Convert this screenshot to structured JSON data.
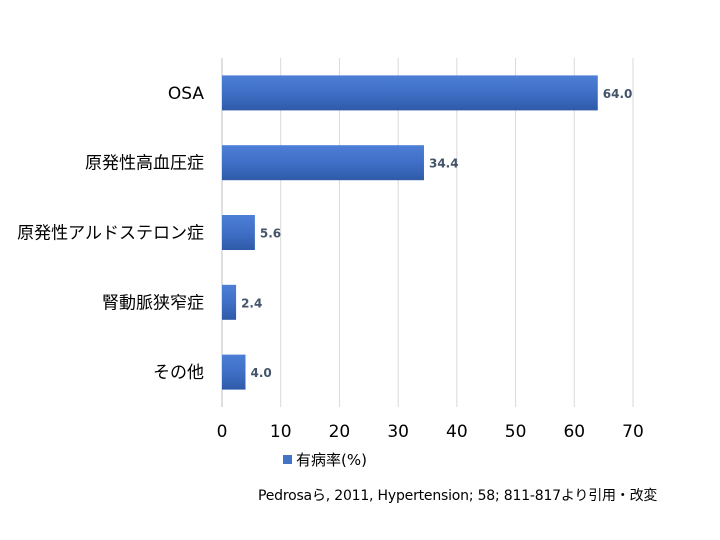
{
  "chart_data": {
    "type": "bar",
    "orientation": "horizontal",
    "categories": [
      "OSA",
      "原発性高血圧症",
      "原発性アルドステロン症",
      "腎動脈狭窄症",
      "その他"
    ],
    "series": [
      {
        "name": "有病率(%)",
        "values": [
          64.0,
          34.4,
          5.6,
          2.4,
          4.0
        ],
        "color": "#4472C4"
      }
    ],
    "data_labels": [
      "64.0",
      "34.4",
      "5.6",
      "2.4",
      "4.0"
    ],
    "xlim": [
      0,
      70
    ],
    "x_ticks": [
      "0",
      "10",
      "20",
      "30",
      "40",
      "50",
      "60",
      "70"
    ],
    "grid": "vertical",
    "legend_position": "bottom"
  },
  "source_note": "Pedrosaら, 2011, Hypertension; 58; 811-817より引用・改変"
}
